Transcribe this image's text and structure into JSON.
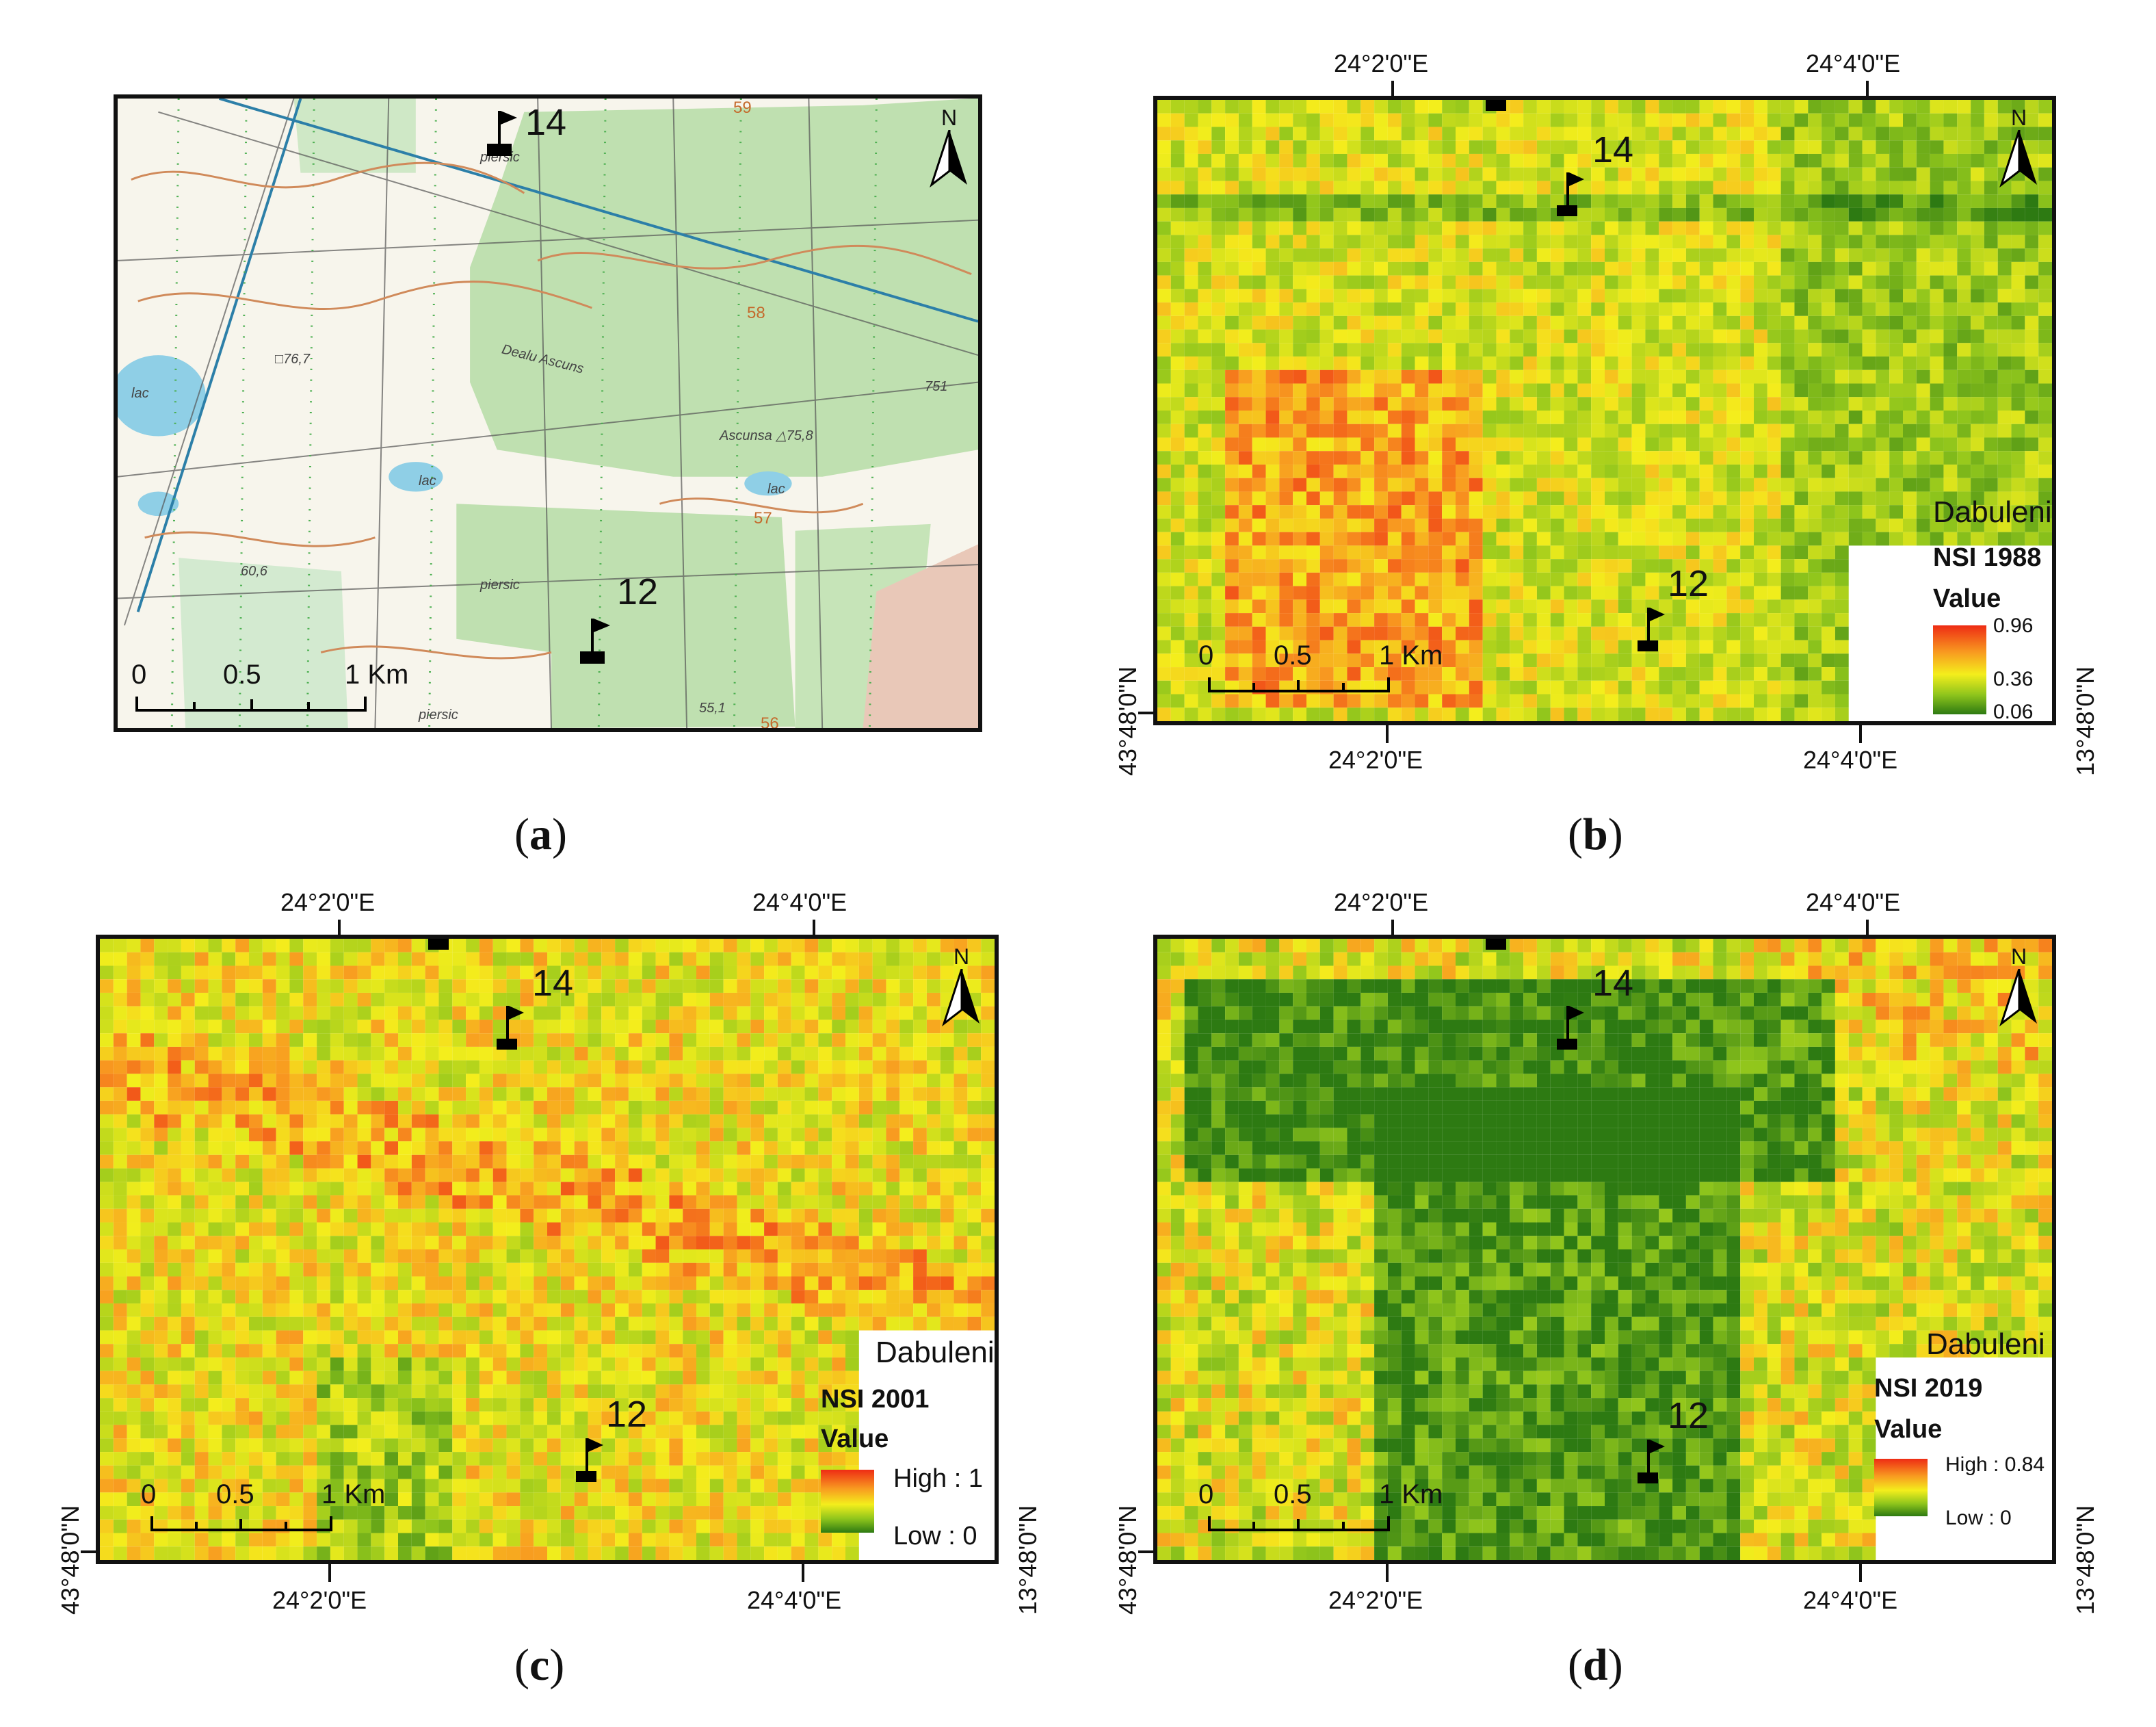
{
  "figure": {
    "captions": [
      "(a)",
      "(b)",
      "(c)",
      "(d)"
    ],
    "caption_letters": [
      "a",
      "b",
      "c",
      "d"
    ]
  },
  "markers": {
    "flag_north": "14",
    "flag_south": "12"
  },
  "north_arrow": {
    "label": "N",
    "icon": "north-arrow-icon"
  },
  "scale": {
    "ticks": [
      "0",
      "0.5"
    ],
    "unit": "1 Km"
  },
  "coords": {
    "lon_left": "24°2'0\"E",
    "lon_right": "24°4'0\"E",
    "lat": "43°48'0\"N",
    "lat_clipped": "13°48'0\"N"
  },
  "topo_map": {
    "labels": [
      "Dealu Ascuns",
      "Ascunsa △75,8",
      "□76,7",
      "piersic",
      "piersic",
      "piersic",
      "lac",
      "lac",
      "lac",
      "60,6",
      "55,1",
      "751"
    ],
    "contour_numbers": [
      "58",
      "57",
      "56",
      "59"
    ]
  },
  "panels": [
    {
      "id": "b",
      "place": "Dabuleni",
      "title": "NSI 1988",
      "legend_value": "Value",
      "legend_labels": [
        "0.96",
        "0.36",
        "0.06"
      ],
      "legend_values": [
        0.96,
        0.36,
        0.06
      ]
    },
    {
      "id": "c",
      "place": "Dabuleni",
      "title": "NSI 2001",
      "legend_value": "Value",
      "legend_labels": [
        "High : 1",
        "Low : 0"
      ],
      "legend_values": [
        1,
        0
      ]
    },
    {
      "id": "d",
      "place": "Dabuleni",
      "title": "NSI 2019",
      "legend_value": "Value",
      "legend_labels": [
        "High : 0.84",
        "Low : 0"
      ],
      "legend_values": [
        0.84,
        0
      ]
    }
  ],
  "colors": {
    "nsi_high": "#ee2c14",
    "nsi_mid": "#f4ee1c",
    "nsi_low": "#2d7a12",
    "topo_green": "#b9dcaa",
    "topo_paper": "#f7f5ec",
    "water": "#8fcfe6"
  }
}
